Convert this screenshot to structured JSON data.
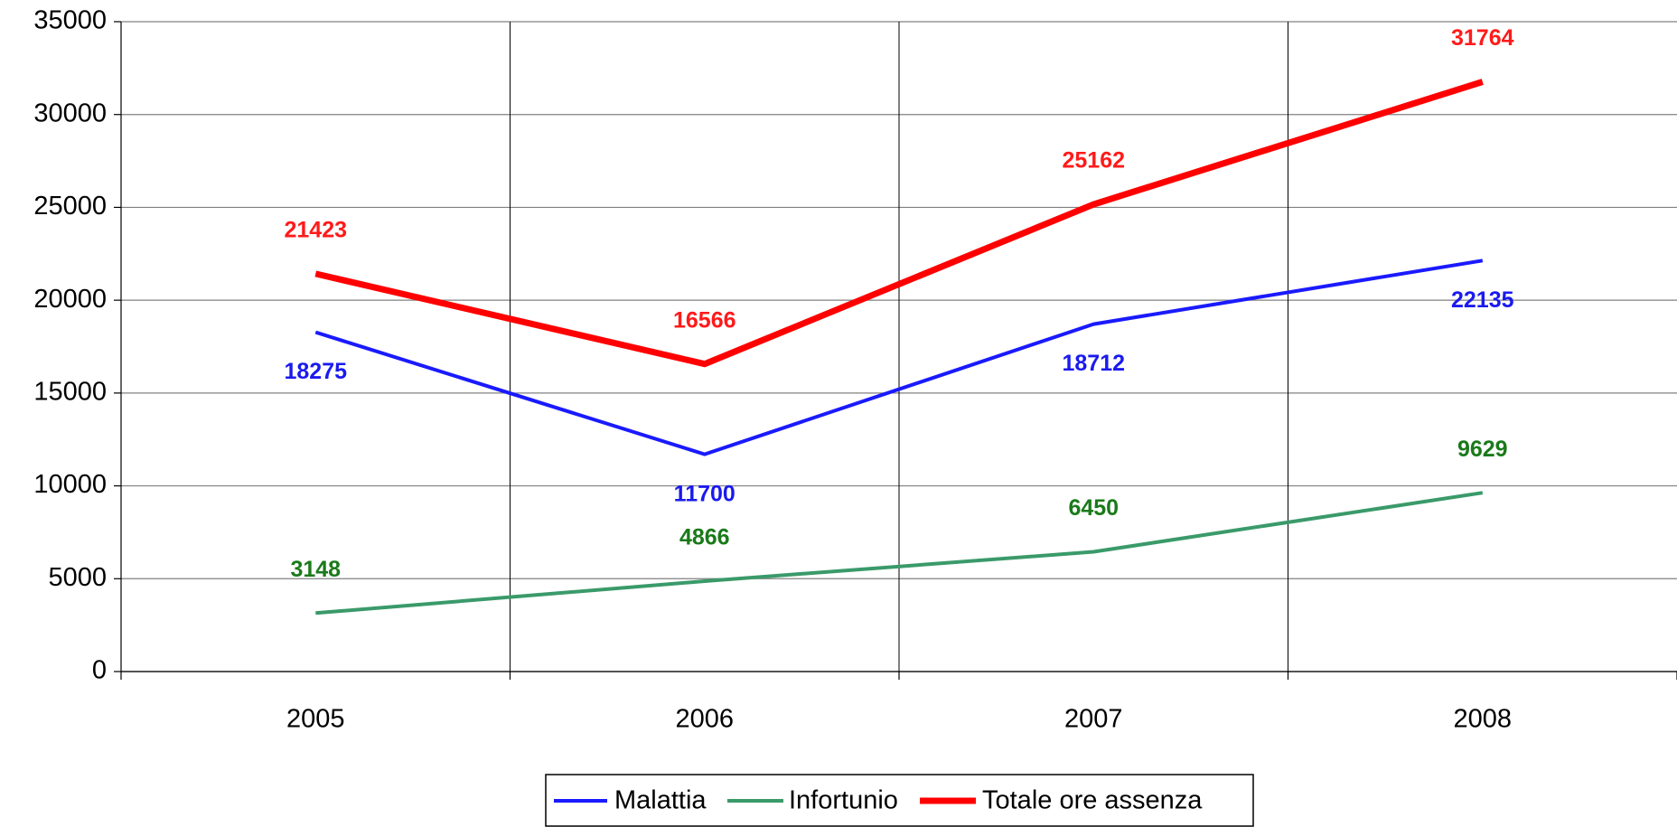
{
  "chart_data": {
    "type": "line",
    "categories": [
      "2005",
      "2006",
      "2007",
      "2008"
    ],
    "series": [
      {
        "name": "Malattia",
        "color": "#1a1aff",
        "label_color": "#1a1aee",
        "label_position": "below",
        "values": [
          18275,
          11700,
          18712,
          22135
        ]
      },
      {
        "name": "Infortunio",
        "color": "#3a9a6a",
        "label_color": "#1a7a1a",
        "label_position": "above",
        "values": [
          3148,
          4866,
          6450,
          9629
        ]
      },
      {
        "name": "Totale ore assenza",
        "color": "#ff0000",
        "label_color": "#ff1a1a",
        "label_position": "above",
        "values": [
          21423,
          16566,
          25162,
          31764
        ]
      }
    ],
    "ylim": [
      0,
      35000
    ],
    "yticks": [
      0,
      5000,
      10000,
      15000,
      20000,
      25000,
      30000,
      35000
    ],
    "grid": true,
    "legend": "bottom"
  }
}
